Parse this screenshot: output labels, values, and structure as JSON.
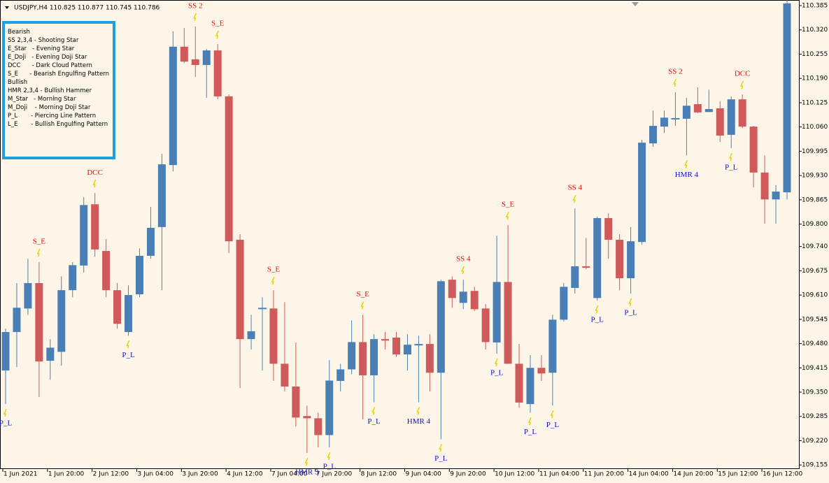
{
  "chart_data": {
    "type": "candlestick",
    "title": "USDJPY,H4  110.825 110.877 110.745 110.786",
    "up_color": "#4a7fb5",
    "down_color": "#d05a5a",
    "signal_up_color": "#1010d0",
    "signal_down_color": "#e01010",
    "categories": [
      "1 Jun 2021",
      null,
      null,
      null,
      "1 Jun 20:00",
      null,
      null,
      null,
      "2 Jun 12:00",
      null,
      null,
      null,
      "3 Jun 04:00",
      null,
      null,
      null,
      "3 Jun 20:00",
      null,
      null,
      null,
      "4 Jun 12:00",
      null,
      null,
      null,
      "7 Jun 04:00",
      null,
      null,
      null,
      "7 Jun 20:00",
      null,
      null,
      null,
      "8 Jun 12:00",
      null,
      null,
      null,
      "9 Jun 04:00",
      null,
      null,
      null,
      "9 Jun 20:00",
      null,
      null,
      null,
      "10 Jun 12:00",
      null,
      null,
      null,
      "11 Jun 04:00",
      null,
      null,
      null,
      "11 Jun 20:00",
      null,
      null,
      null,
      "14 Jun 04:00",
      null,
      null,
      null,
      "14 Jun 20:00",
      null,
      null,
      null,
      "15 Jun 12:00",
      null,
      null,
      null,
      "16 Jun 12:00",
      null,
      null
    ],
    "open": [
      109.408,
      109.511,
      109.574,
      109.642,
      109.434,
      109.458,
      109.623,
      109.689,
      109.853,
      109.728,
      109.623,
      109.511,
      109.612,
      109.715,
      109.792,
      109.958,
      110.275,
      110.241,
      110.226,
      110.265,
      110.142,
      109.758,
      109.492,
      109.574,
      109.574,
      109.426,
      109.365,
      109.286,
      109.28,
      109.235,
      109.38,
      109.411,
      109.484,
      109.395,
      109.492,
      109.496,
      109.451,
      109.477,
      109.479,
      109.402,
      109.651,
      109.589,
      109.621,
      109.574,
      109.483,
      109.645,
      109.426,
      109.318,
      109.415,
      109.402,
      109.544,
      109.629,
      109.687,
      109.602,
      109.816,
      109.758,
      109.655,
      109.752,
      110.016,
      110.061,
      110.082,
      110.082,
      110.121,
      110.1,
      110.11,
      110.039,
      110.134,
      110.061,
      109.938,
      109.866,
      109.885
    ],
    "high": [
      109.52,
      109.642,
      109.707,
      109.698,
      109.492,
      109.66,
      109.698,
      109.872,
      109.883,
      109.76,
      109.642,
      109.636,
      109.735,
      109.846,
      109.988,
      110.316,
      110.325,
      110.329,
      110.269,
      110.282,
      110.147,
      109.773,
      109.557,
      109.604,
      109.623,
      109.591,
      109.483,
      109.314,
      109.295,
      109.436,
      109.426,
      109.542,
      109.557,
      109.505,
      109.511,
      109.511,
      109.505,
      109.501,
      109.505,
      109.651,
      109.66,
      109.651,
      109.632,
      109.586,
      109.769,
      109.797,
      109.479,
      109.449,
      109.449,
      109.557,
      109.642,
      109.842,
      109.763,
      109.82,
      109.829,
      109.773,
      109.792,
      110.026,
      110.104,
      110.104,
      110.153,
      110.138,
      110.166,
      110.16,
      110.129,
      110.142,
      110.147,
      110.063,
      109.984,
      109.904,
      110.4
    ],
    "low": [
      109.318,
      109.417,
      109.557,
      109.337,
      109.383,
      109.421,
      109.604,
      109.67,
      109.713,
      109.604,
      109.52,
      109.501,
      109.604,
      109.707,
      109.623,
      109.941,
      110.231,
      110.194,
      110.138,
      110.134,
      109.722,
      109.361,
      109.464,
      109.408,
      109.38,
      109.352,
      109.258,
      109.187,
      109.202,
      109.202,
      109.352,
      109.398,
      109.277,
      109.323,
      109.464,
      109.445,
      109.408,
      109.323,
      109.352,
      109.224,
      109.576,
      109.572,
      109.567,
      109.464,
      109.453,
      109.426,
      109.308,
      109.295,
      109.38,
      109.314,
      109.539,
      109.614,
      109.679,
      109.595,
      109.707,
      109.623,
      109.614,
      109.745,
      110.007,
      110.044,
      110.063,
      109.984,
      110.097,
      110.1,
      110.02,
      110.003,
      110.057,
      109.898,
      109.801,
      109.801,
      109.866
    ],
    "close": [
      109.511,
      109.576,
      109.642,
      109.432,
      109.469,
      109.623,
      109.69,
      109.851,
      109.732,
      109.623,
      109.533,
      109.61,
      109.715,
      109.79,
      109.96,
      110.275,
      110.235,
      110.226,
      110.265,
      110.142,
      109.754,
      109.492,
      109.513,
      109.574,
      109.426,
      109.365,
      109.282,
      109.28,
      109.235,
      109.381,
      109.411,
      109.484,
      109.395,
      109.492,
      109.488,
      109.451,
      109.477,
      109.477,
      109.402,
      109.647,
      109.602,
      109.619,
      109.572,
      109.484,
      109.645,
      109.426,
      109.322,
      109.415,
      109.4,
      109.544,
      109.632,
      109.687,
      109.683,
      109.816,
      109.758,
      109.655,
      109.754,
      110.018,
      110.063,
      110.085,
      110.082,
      110.117,
      110.099,
      110.108,
      110.037,
      110.134,
      110.061,
      109.938,
      109.866,
      109.887,
      110.391
    ],
    "bearish_signals": [
      null,
      null,
      null,
      "S_E",
      null,
      null,
      null,
      null,
      "DCC",
      null,
      null,
      null,
      null,
      null,
      null,
      null,
      null,
      "SS 2",
      null,
      "S_E",
      null,
      null,
      null,
      null,
      "S_E",
      null,
      null,
      null,
      null,
      null,
      null,
      null,
      "S_E",
      null,
      null,
      null,
      null,
      null,
      null,
      null,
      null,
      "SS 4",
      null,
      null,
      null,
      "S_E",
      null,
      null,
      null,
      null,
      null,
      "SS 4",
      null,
      null,
      null,
      null,
      null,
      null,
      null,
      null,
      "SS 2",
      null,
      null,
      null,
      null,
      null,
      "DCC",
      null,
      null,
      null,
      null
    ],
    "bullish_signals": [
      "P_L",
      null,
      null,
      null,
      null,
      null,
      null,
      null,
      null,
      null,
      null,
      "P_L",
      null,
      null,
      null,
      null,
      null,
      null,
      null,
      null,
      null,
      null,
      null,
      null,
      null,
      null,
      null,
      "HMR 3",
      null,
      "P_L",
      null,
      null,
      null,
      "P_L",
      null,
      null,
      null,
      "HMR 4",
      null,
      "P_L",
      null,
      null,
      null,
      null,
      "P_L",
      null,
      null,
      "P_L",
      null,
      "P_L",
      null,
      null,
      null,
      "P_L",
      null,
      null,
      "P_L",
      null,
      null,
      null,
      null,
      "HMR 4",
      null,
      null,
      null,
      "P_L",
      null,
      null,
      null,
      null,
      null
    ],
    "ylim": [
      109.146,
      110.4
    ],
    "yticks": [
      {
        "value": 110.385,
        "label": "110.385"
      },
      {
        "value": 110.32,
        "label": "110.320"
      },
      {
        "value": 110.255,
        "label": "110.255"
      },
      {
        "value": 110.19,
        "label": "110.190"
      },
      {
        "value": 110.125,
        "label": "110.125"
      },
      {
        "value": 110.06,
        "label": "110.060"
      },
      {
        "value": 109.995,
        "label": "109.995"
      },
      {
        "value": 109.93,
        "label": "109.930"
      },
      {
        "value": 109.865,
        "label": "109.865"
      },
      {
        "value": 109.8,
        "label": "109.800"
      },
      {
        "value": 109.74,
        "label": "109.740"
      },
      {
        "value": 109.675,
        "label": "109.675"
      },
      {
        "value": 109.61,
        "label": "109.610"
      },
      {
        "value": 109.545,
        "label": "109.545"
      },
      {
        "value": 109.48,
        "label": "109.480"
      },
      {
        "value": 109.415,
        "label": "109.415"
      },
      {
        "value": 109.35,
        "label": "109.350"
      },
      {
        "value": 109.285,
        "label": "109.285"
      },
      {
        "value": 109.22,
        "label": "109.220"
      },
      {
        "value": 109.155,
        "label": "109.155"
      }
    ],
    "legend_groups": [
      {
        "heading": "Bearish",
        "items": [
          "SS 2,3,4 - Shooting Star",
          "E_Star   - Evening Star",
          "E_Doji   - Evening Doji Star",
          "DCC      - Dark Cloud Pattern",
          "S_E      - Bearish Engulfing Pattern"
        ]
      },
      {
        "heading": "Bullish",
        "items": [
          "HMR 2,3,4 - Bullish Hammer",
          "M_Star   - Morning Star",
          "M_Doji    - Morning Doji Star",
          "P_L       - Piercing Line Pattern",
          "L_E       - Bullish Engulfing Pattern"
        ]
      }
    ]
  }
}
